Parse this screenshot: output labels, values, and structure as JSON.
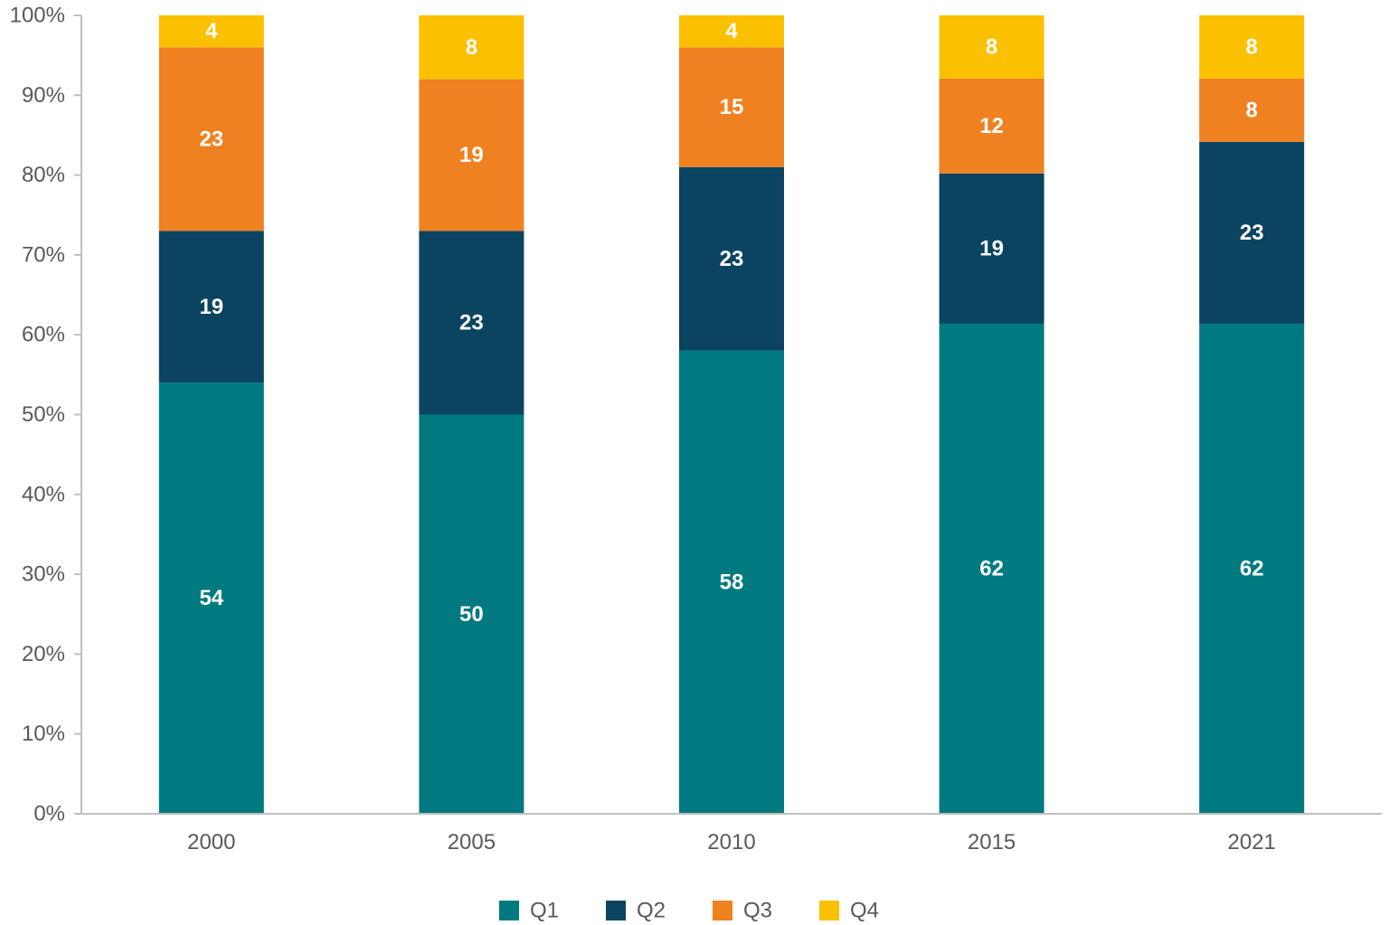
{
  "chart_data": {
    "type": "bar",
    "stacked": true,
    "categories": [
      "2000",
      "2005",
      "2010",
      "2015",
      "2021"
    ],
    "series": [
      {
        "name": "Q1",
        "color": "#007A80",
        "values": [
          54,
          50,
          58,
          62,
          62
        ]
      },
      {
        "name": "Q2",
        "color": "#0B4460",
        "values": [
          19,
          23,
          23,
          19,
          23
        ]
      },
      {
        "name": "Q3",
        "color": "#EF8121",
        "values": [
          23,
          19,
          15,
          12,
          8
        ]
      },
      {
        "name": "Q4",
        "color": "#FBC000",
        "values": [
          4,
          8,
          4,
          8,
          8
        ]
      }
    ],
    "ylim": [
      0,
      100
    ],
    "yticks": [
      "0%",
      "10%",
      "20%",
      "30%",
      "40%",
      "50%",
      "60%",
      "70%",
      "80%",
      "90%",
      "100%"
    ],
    "legend_position": "bottom",
    "grid": false,
    "title": "",
    "xlabel": "",
    "ylabel": ""
  }
}
